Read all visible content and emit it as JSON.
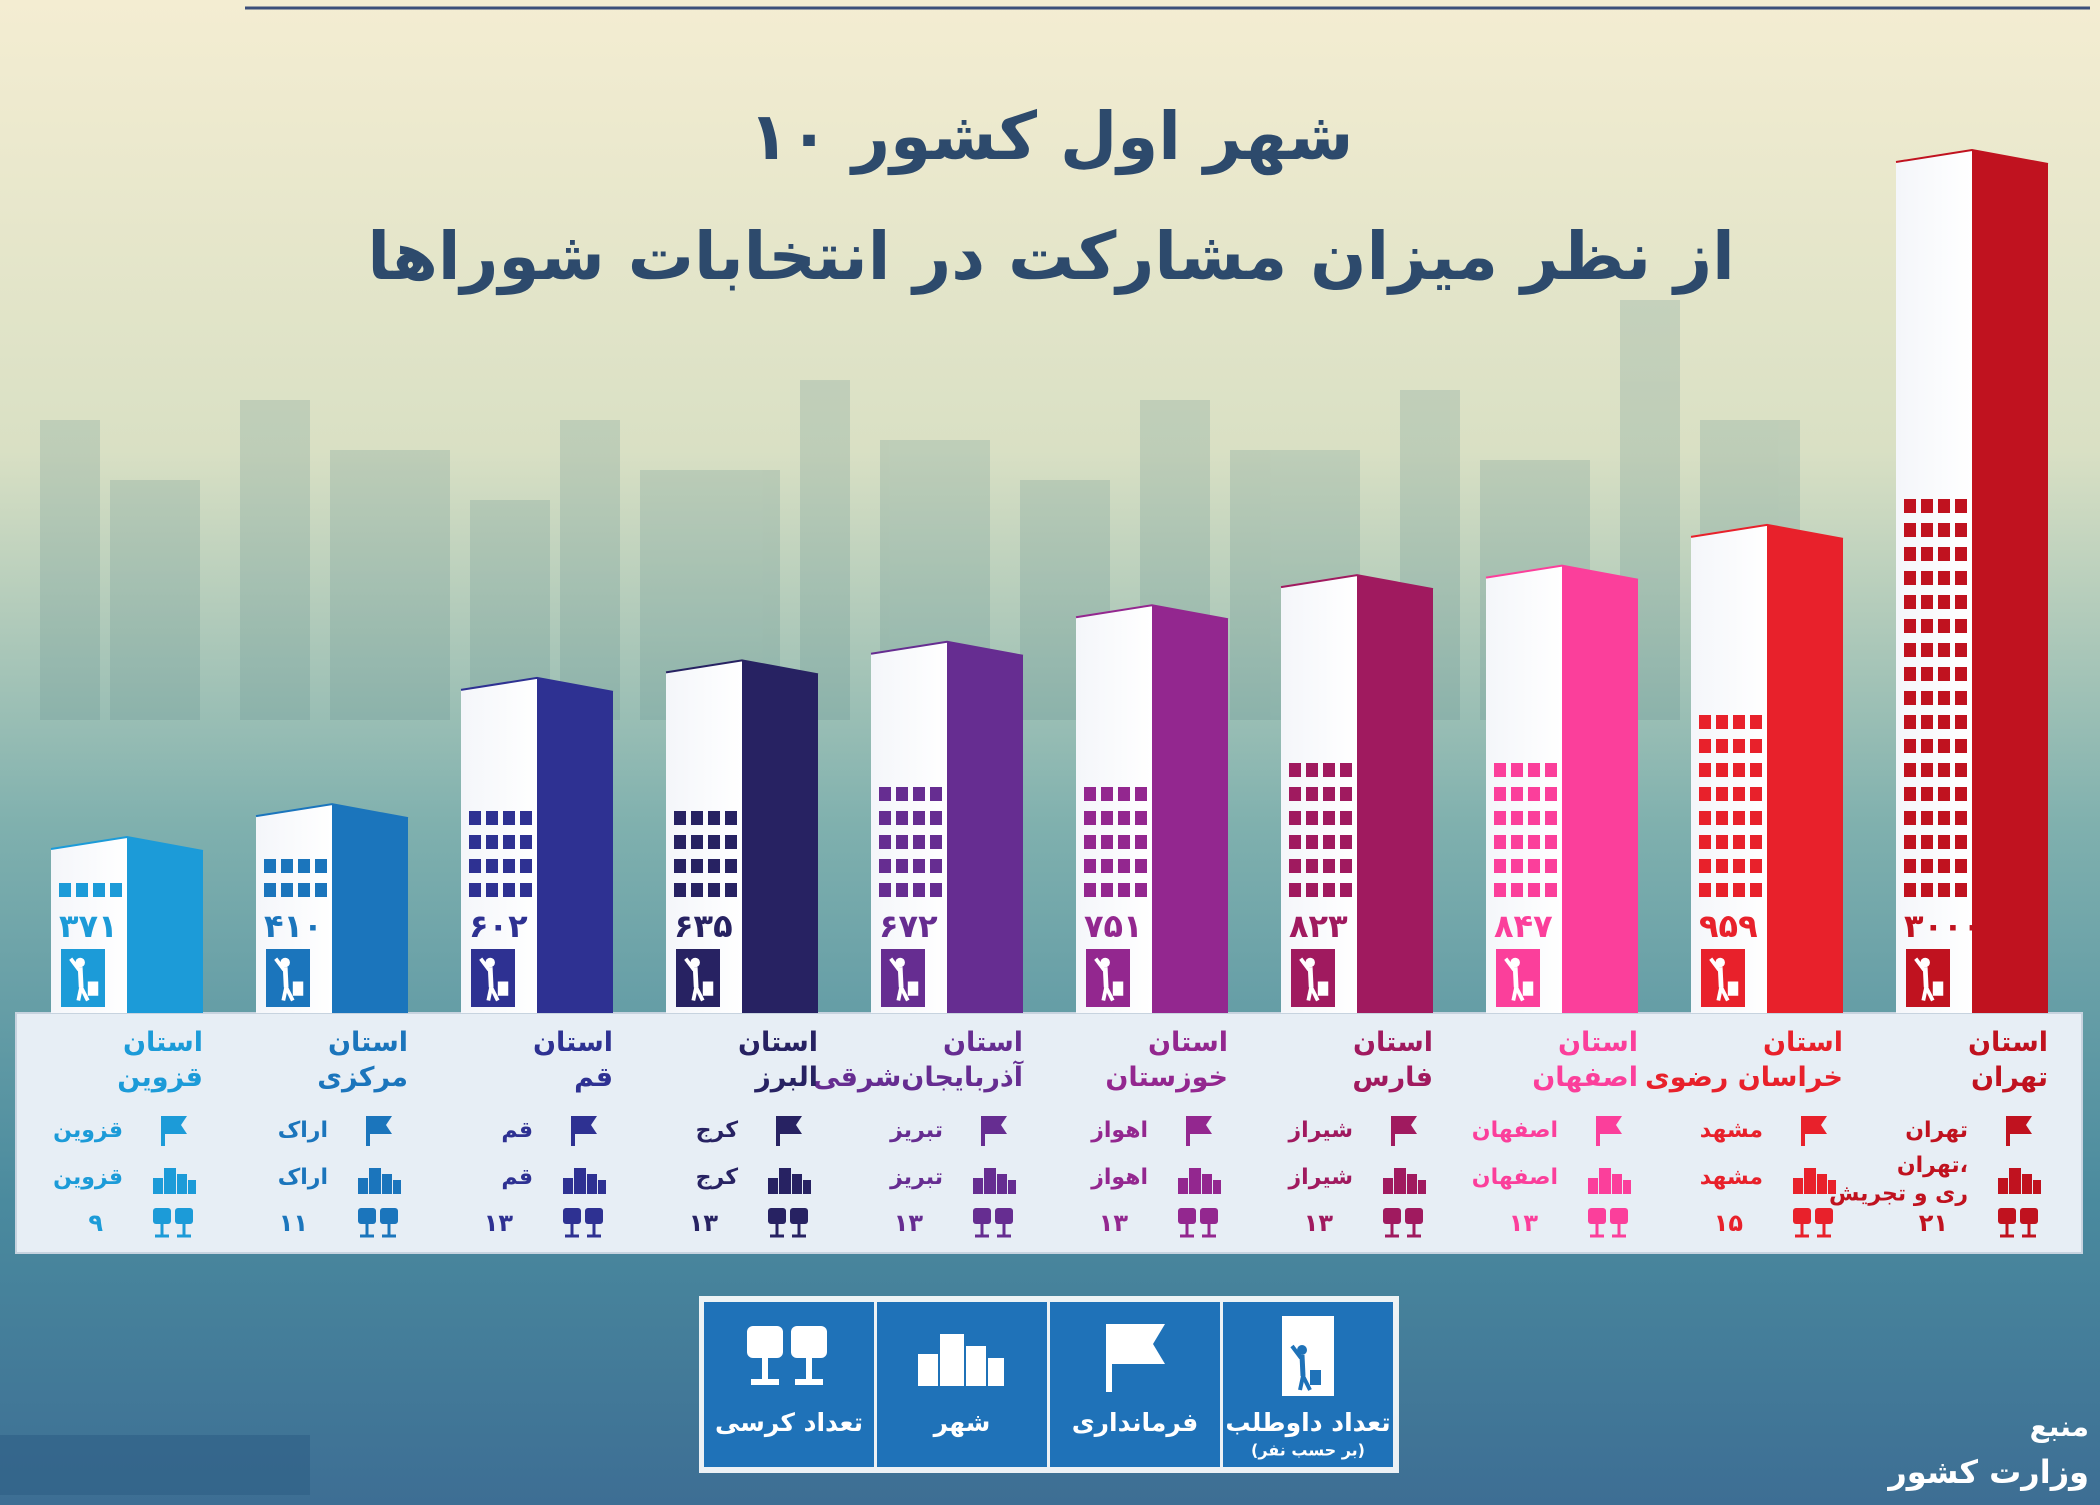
{
  "chart_data": {
    "type": "bar",
    "title": "۱۰ شهر اول کشور",
    "subtitle": "از نظر میزان مشارکت در انتخابات شوراها",
    "log_scale": true,
    "categories": [
      "استان\nتهران",
      "استان\nخراسان رضوی",
      "استان\nاصفهان",
      "استان\nفارس",
      "استان\nخوزستان",
      "استان\nآذربایجان‌شرقی",
      "استان\nالبرز",
      "استان\nقم",
      "استان\nمرکزی",
      "استان\nقزوین"
    ],
    "values": [
      3000,
      959,
      847,
      823,
      751,
      672,
      635,
      602,
      410,
      371
    ],
    "value_labels": [
      "۳۰۰۰",
      "۹۵۹",
      "۸۴۷",
      "۸۲۳",
      "۷۵۱",
      "۶۷۲",
      "۶۳۵",
      "۶۰۲",
      "۴۱۰",
      "۳۷۱"
    ],
    "colors": [
      "#c0121f",
      "#e8212b",
      "#fb3f9b",
      "#a01a5f",
      "#93278f",
      "#662d91",
      "#272262",
      "#2e3192",
      "#1b75bc",
      "#1c9bd8"
    ],
    "governorates": [
      "تهران",
      "مشهد",
      "اصفهان",
      "شیراز",
      "اهواز",
      "تبریز",
      "کرج",
      "قم",
      "اراک",
      "قزوین"
    ],
    "cities": [
      "تهران،\nری و تجریش",
      "مشهد",
      "اصفهان",
      "شیراز",
      "اهواز",
      "تبریز",
      "کرج",
      "قم",
      "اراک",
      "قزوین"
    ],
    "seats": [
      21,
      15,
      13,
      13,
      13,
      13,
      13,
      13,
      11,
      9
    ],
    "seat_labels": [
      "۲۱",
      "۱۵",
      "۱۳",
      "۱۳",
      "۱۳",
      "۱۳",
      "۱۳",
      "۱۳",
      "۱۱",
      "۹"
    ],
    "legend": [
      "تعداد داوطلب",
      "فرمانداری",
      "شهر",
      "تعداد کرسی"
    ],
    "legend_note": "(بر حسب نفر)",
    "source_label": "منبع",
    "source": "وزارت کشور"
  }
}
